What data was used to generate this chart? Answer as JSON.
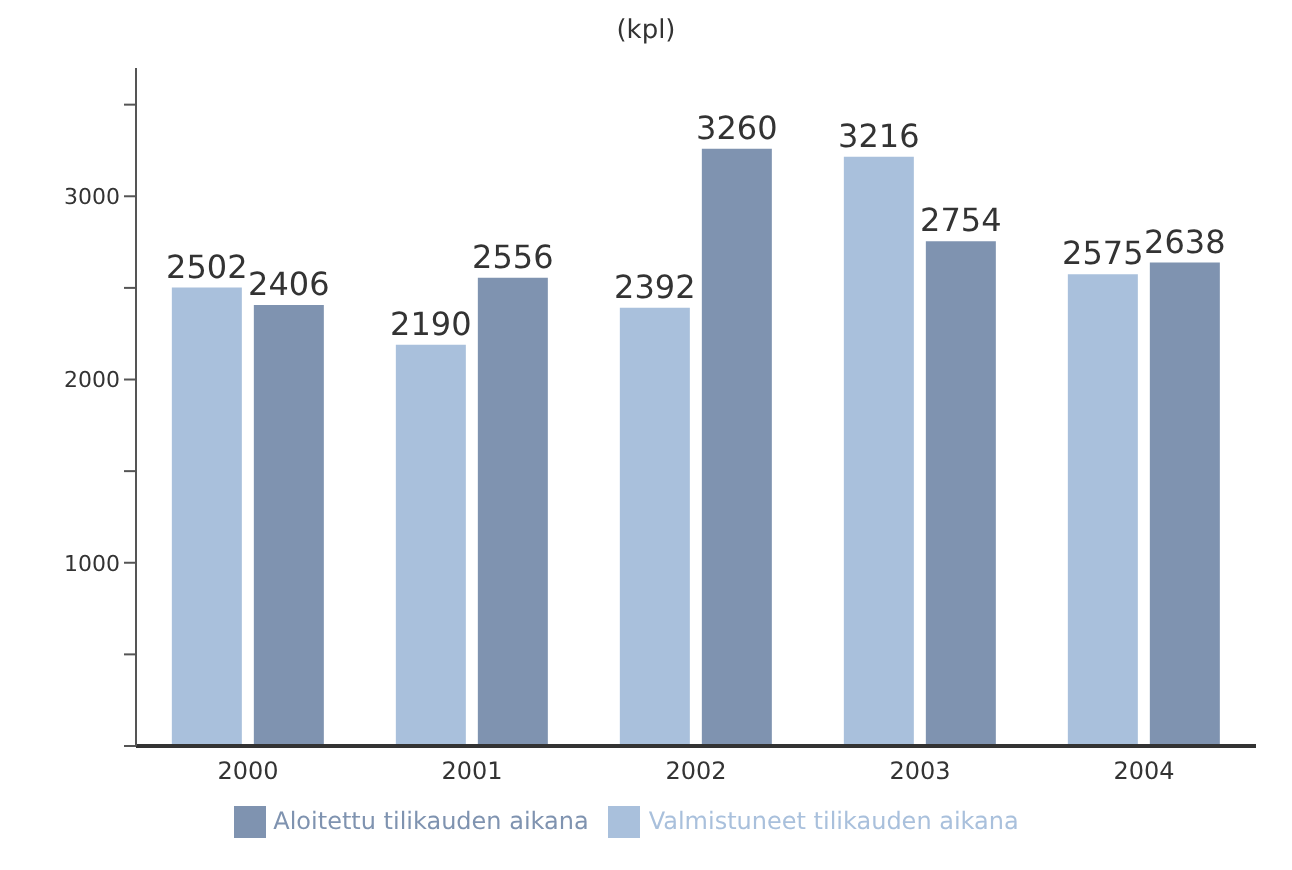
{
  "chart_data": {
    "type": "bar",
    "title": "(kpl)",
    "categories": [
      "2000",
      "2001",
      "2002",
      "2003",
      "2004"
    ],
    "series": [
      {
        "name": "Valmistuneet tilikauden aikana",
        "color": "#a9c0dc",
        "values": [
          2502,
          2190,
          2392,
          3216,
          2575
        ]
      },
      {
        "name": "Aloitettu tilikauden aikana",
        "color": "#7f93b0",
        "values": [
          2406,
          2556,
          3260,
          2754,
          2638
        ]
      }
    ],
    "ylim": [
      0,
      3700
    ],
    "yticks": [
      {
        "value": 0,
        "label": null
      },
      {
        "value": 500,
        "label": null
      },
      1000,
      {
        "value": 1500,
        "label": null
      },
      2000,
      {
        "value": 2500,
        "label": null
      },
      3000,
      {
        "value": 3500,
        "label": null
      }
    ],
    "data_labels": true,
    "grid": false,
    "legend": "bottom"
  }
}
